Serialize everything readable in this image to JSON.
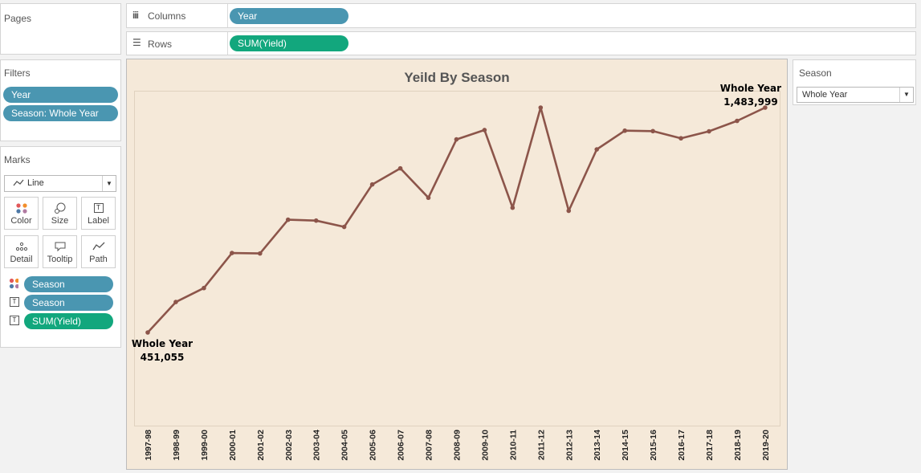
{
  "panels": {
    "pages": {
      "title": "Pages"
    },
    "filters": {
      "title": "Filters",
      "pills": [
        "Year",
        "Season: Whole Year"
      ]
    },
    "marks": {
      "title": "Marks",
      "mark_type": "Line",
      "buttons": {
        "color": "Color",
        "size": "Size",
        "label": "Label",
        "detail": "Detail",
        "tooltip": "Tooltip",
        "path": "Path"
      },
      "fields": [
        {
          "icon": "color-dots-icon",
          "label": "Season"
        },
        {
          "icon": "text-label-icon",
          "label": "Season"
        },
        {
          "icon": "text-label-icon",
          "label": "SUM(Yield)"
        }
      ]
    }
  },
  "shelves": {
    "columns": {
      "label": "Columns",
      "pill": "Year"
    },
    "rows": {
      "label": "Rows",
      "pill": "SUM(Yield)"
    }
  },
  "season_filter": {
    "title": "Season",
    "selected": "Whole Year"
  },
  "colors": {
    "line": "#8c554a",
    "chart_bg": "#f5e9d9",
    "dimension_pill": "#4a96b1",
    "measure_pill": "#12a77d"
  },
  "chart_data": {
    "type": "line",
    "title": "Yeild By Season",
    "xlabel": "",
    "ylabel": "",
    "grid": false,
    "categories": [
      "1997-98",
      "1998-99",
      "1999-00",
      "2000-01",
      "2001-02",
      "2002-03",
      "2003-04",
      "2004-05",
      "2005-06",
      "2006-07",
      "2007-08",
      "2008-09",
      "2009-10",
      "2010-11",
      "2011-12",
      "2012-13",
      "2013-14",
      "2014-15",
      "2015-16",
      "2016-17",
      "2017-18",
      "2018-19",
      "2019-20"
    ],
    "series": [
      {
        "name": "Whole Year",
        "values": [
          451055,
          591000,
          655000,
          816000,
          814000,
          969000,
          965000,
          936000,
          1131000,
          1205000,
          1070000,
          1338000,
          1381000,
          1024000,
          1484000,
          1010000,
          1292000,
          1378000,
          1376000,
          1343000,
          1375000,
          1423000,
          1483999
        ]
      }
    ],
    "annotations": [
      {
        "category": "1997-98",
        "label": "Whole Year",
        "value_text": "451,055"
      },
      {
        "category": "2019-20",
        "label": "Whole Year",
        "value_text": "1,483,999"
      }
    ]
  }
}
